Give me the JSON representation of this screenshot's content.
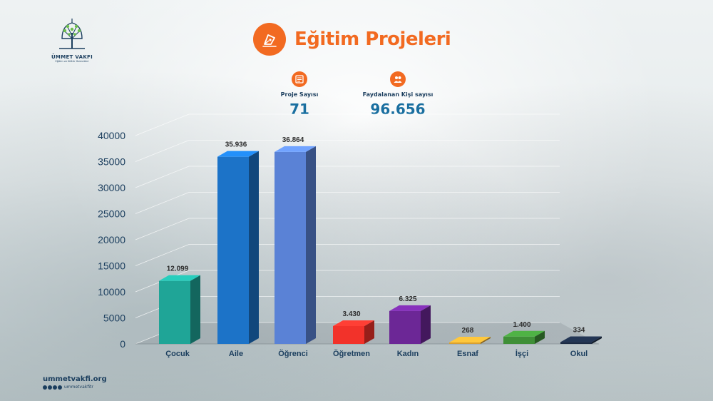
{
  "brand": {
    "logo_name": "ÜMMET VAKFI",
    "logo_tagline": "Eğitim ve Kültür Hizmetleri",
    "website": "ummetvakfi.org",
    "social_handle": "ummetvakfitr",
    "accent_color": "#f26a21",
    "navy_color": "#1b3e5e"
  },
  "header": {
    "title": "Eğitim Projeleri",
    "icon": "pen-nib-icon"
  },
  "stats": [
    {
      "label": "Proje Sayısı",
      "value": "71",
      "icon": "document-icon"
    },
    {
      "label": "Faydalanan Kişi sayısı",
      "value": "96.656",
      "icon": "people-icon"
    }
  ],
  "chart_data": {
    "type": "bar",
    "categories": [
      "Çocuk",
      "Aile",
      "Öğrenci",
      "Öğretmen",
      "Kadın",
      "Esnaf",
      "İşçi",
      "Okul"
    ],
    "values": [
      12099,
      35936,
      36864,
      3430,
      6325,
      268,
      1400,
      334
    ],
    "data_labels": [
      "12.099",
      "35.936",
      "36.864",
      "3.430",
      "6.325",
      "268",
      "1.400",
      "334"
    ],
    "colors": [
      "#1fa597",
      "#1c73c8",
      "#5a82d6",
      "#f2322a",
      "#6c2796",
      "#d9a030",
      "#3f8f37",
      "#1c2b44"
    ],
    "ylim": [
      0,
      40000
    ],
    "yticks": [
      "0",
      "5000",
      "10000",
      "15000",
      "20000",
      "25000",
      "30000",
      "35000",
      "40000"
    ],
    "grid": true,
    "style": "3d"
  }
}
